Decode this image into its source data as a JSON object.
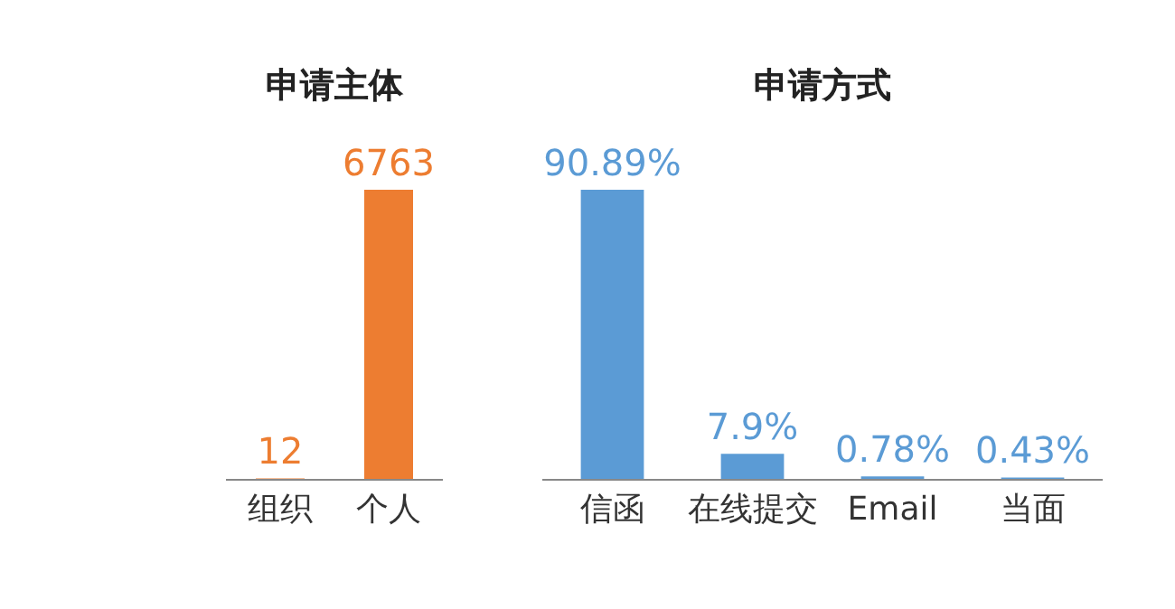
{
  "chart_data": [
    {
      "type": "bar",
      "title": "申请主体",
      "categories": [
        "组织",
        "个人"
      ],
      "values": [
        12,
        6763
      ],
      "color": "#ed7d31",
      "data_labels": true
    },
    {
      "type": "bar",
      "title": "申请方式",
      "categories": [
        "信函",
        "在线提交",
        "Email",
        "当面"
      ],
      "values": [
        90.89,
        7.9,
        0.78,
        0.43
      ],
      "color": "#5b9bd5",
      "value_labels": [
        "90.89%",
        "7.9%",
        "0.78%",
        "0.43%"
      ]
    }
  ]
}
